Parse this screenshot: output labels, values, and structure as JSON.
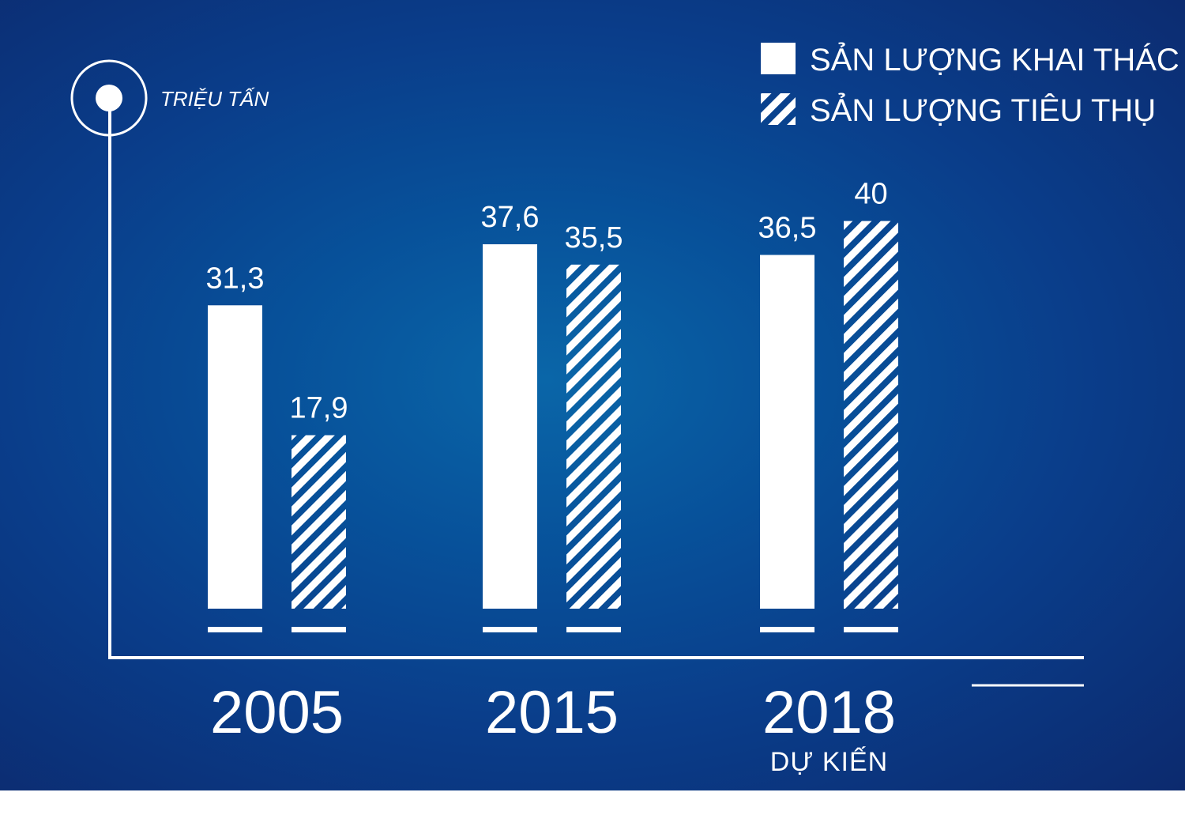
{
  "chart_data": {
    "type": "bar",
    "unit": "TRIỆU TẤN",
    "categories": [
      "2005",
      "2015",
      "2018"
    ],
    "category_notes": [
      "",
      "",
      "DỰ KIẾN"
    ],
    "series": [
      {
        "name": "SẢN LƯỢNG KHAI THÁC",
        "pattern": "solid",
        "values": [
          31.3,
          37.6,
          36.5
        ],
        "labels": [
          "31,3",
          "37,6",
          "36,5"
        ]
      },
      {
        "name": "SẢN LƯỢNG TIÊU THỤ",
        "pattern": "hatched",
        "values": [
          17.9,
          35.5,
          40
        ],
        "labels": [
          "17,9",
          "35,5",
          "40"
        ]
      }
    ],
    "legend_position": "top-right",
    "grid": false
  },
  "colors": {
    "background_center": "#0a66a8",
    "background_edge": "#0c2a6e",
    "bars": "#ffffff"
  }
}
